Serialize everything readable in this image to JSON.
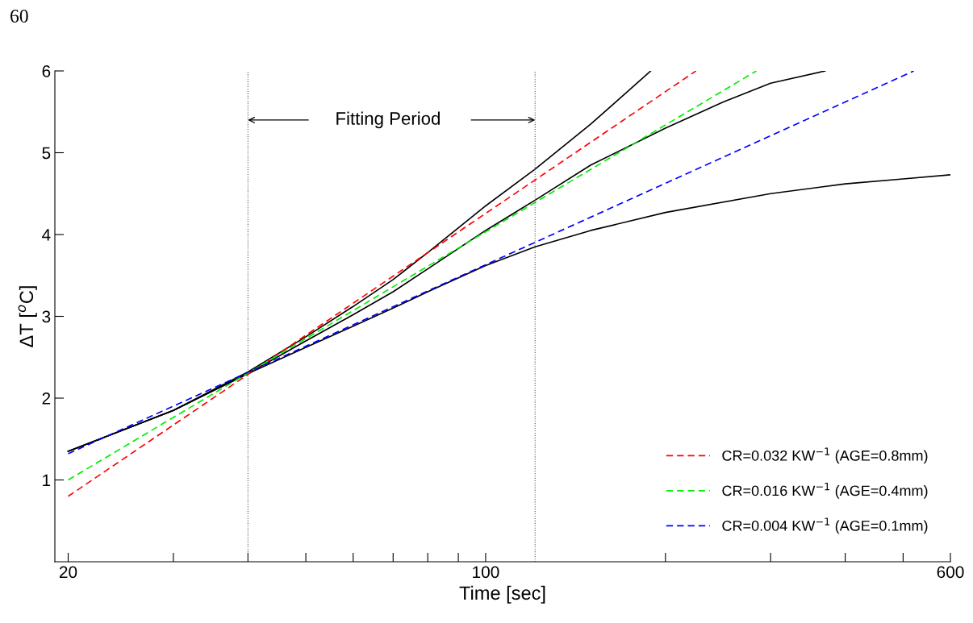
{
  "chart_data": {
    "type": "line",
    "xlabel": "Time [sec]",
    "ylabel": "ΔT [$^{o}$C]",
    "log": "x",
    "xlim": [
      19,
      600
    ],
    "ylim": [
      0,
      6
    ],
    "xticks": [
      20,
      {
        "value": 30,
        "label": null
      },
      {
        "value": 40,
        "label": null
      },
      {
        "value": 50,
        "label": null
      },
      {
        "value": 60,
        "label": null
      },
      {
        "value": 70,
        "label": null
      },
      {
        "value": 80,
        "label": null
      },
      {
        "value": 90,
        "label": null
      },
      100,
      {
        "value": 200,
        "label": null
      },
      {
        "value": 300,
        "label": null
      },
      {
        "value": 400,
        "label": null
      },
      {
        "value": 500,
        "label": null
      },
      600
    ],
    "yticks": [
      1,
      2,
      3,
      4,
      5,
      6
    ],
    "grid": false,
    "legend": "bottom right",
    "line_style": "solid",
    "marker": "none",
    "series": [
      {
        "color": "#000000",
        "x": [
          20,
          30,
          40,
          50,
          60,
          70,
          80,
          100,
          121,
          150,
          189
        ],
        "values": [
          1.35,
          1.85,
          2.32,
          2.75,
          3.12,
          3.45,
          3.78,
          4.35,
          4.8,
          5.35,
          6.0
        ]
      },
      {
        "color": "#000000",
        "x": [
          20,
          30,
          40,
          50,
          60,
          70,
          80,
          100,
          121,
          150,
          200,
          250,
          300,
          370
        ],
        "values": [
          1.35,
          1.85,
          2.3,
          2.7,
          3.02,
          3.3,
          3.58,
          4.05,
          4.42,
          4.85,
          5.3,
          5.62,
          5.85,
          6.0
        ]
      },
      {
        "color": "#000000",
        "x": [
          20,
          30,
          40,
          50,
          60,
          70,
          80,
          100,
          121,
          150,
          200,
          300,
          400,
          500,
          600
        ],
        "values": [
          1.35,
          1.85,
          2.3,
          2.62,
          2.88,
          3.1,
          3.3,
          3.62,
          3.85,
          4.05,
          4.27,
          4.5,
          4.62,
          4.68,
          4.73
        ]
      },
      {
        "name": "CR=0.032 KW$^{−1}$ (AGE=0.8mm)",
        "color": "#ff0000",
        "line_style": "dashed",
        "x": [
          20,
          225
        ],
        "values": [
          0.8,
          6.0
        ]
      },
      {
        "name": "CR=0.016 KW$^{−1}$ (AGE=0.4mm)",
        "color": "#00ee00",
        "line_style": "dashed",
        "x": [
          20,
          284
        ],
        "values": [
          1.0,
          6.0
        ]
      },
      {
        "name": "CR=0.004 KW$^{−1}$ (AGE=0.1mm)",
        "color": "#0000ff",
        "line_style": "dashed",
        "x": [
          20,
          521
        ],
        "values": [
          1.32,
          6.0
        ]
      }
    ],
    "ref_lines": [
      {
        "axis": "x",
        "value": 40,
        "label": null,
        "color": "#555555",
        "line_style": "dotted"
      },
      {
        "axis": "x",
        "value": 121,
        "label": null,
        "color": "#555555",
        "line_style": "dotted"
      }
    ],
    "annotations": [
      "Fitting Period",
      "60"
    ]
  }
}
